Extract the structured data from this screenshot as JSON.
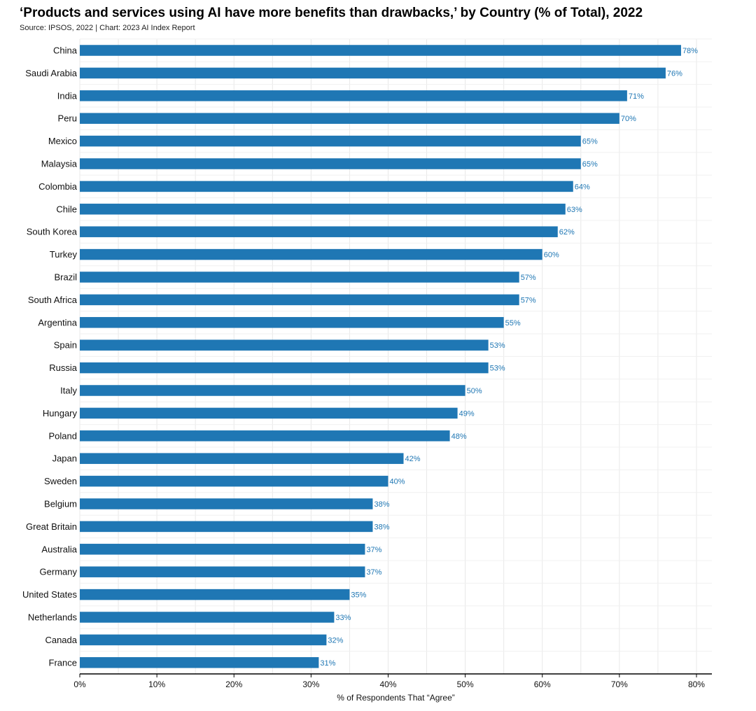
{
  "title": "‘Products and services using AI have more benefits than drawbacks,’ by Country (% of Total), 2022",
  "source": "Source: IPSOS, 2022 | Chart: 2023 AI Index Report",
  "colors": {
    "bar": "#1f77b4",
    "label": "#1f77b4",
    "grid": "#e8e8e8",
    "axis": "#000000"
  },
  "chart_data": {
    "type": "bar",
    "orientation": "horizontal",
    "categories": [
      "China",
      "Saudi Arabia",
      "India",
      "Peru",
      "Mexico",
      "Malaysia",
      "Colombia",
      "Chile",
      "South Korea",
      "Turkey",
      "Brazil",
      "South Africa",
      "Argentina",
      "Spain",
      "Russia",
      "Italy",
      "Hungary",
      "Poland",
      "Japan",
      "Sweden",
      "Belgium",
      "Great Britain",
      "Australia",
      "Germany",
      "United States",
      "Netherlands",
      "Canada",
      "France"
    ],
    "values": [
      78,
      76,
      71,
      70,
      65,
      65,
      64,
      63,
      62,
      60,
      57,
      57,
      55,
      53,
      53,
      50,
      49,
      48,
      42,
      40,
      38,
      38,
      37,
      37,
      35,
      33,
      32,
      31
    ],
    "data_labels": [
      "78%",
      "76%",
      "71%",
      "70%",
      "65%",
      "65%",
      "64%",
      "63%",
      "62%",
      "60%",
      "57%",
      "57%",
      "55%",
      "53%",
      "53%",
      "50%",
      "49%",
      "48%",
      "42%",
      "40%",
      "38%",
      "38%",
      "37%",
      "37%",
      "35%",
      "33%",
      "32%",
      "31%"
    ],
    "xlim": [
      0,
      82
    ],
    "xticks": [
      0,
      10,
      20,
      30,
      40,
      50,
      60,
      70,
      80
    ],
    "xtick_labels": [
      "0%",
      "10%",
      "20%",
      "30%",
      "40%",
      "50%",
      "60%",
      "70%",
      "80%"
    ],
    "xlabel": "% of Respondents That “Agree”",
    "ylabel": "",
    "grid": true,
    "legend": "none"
  }
}
